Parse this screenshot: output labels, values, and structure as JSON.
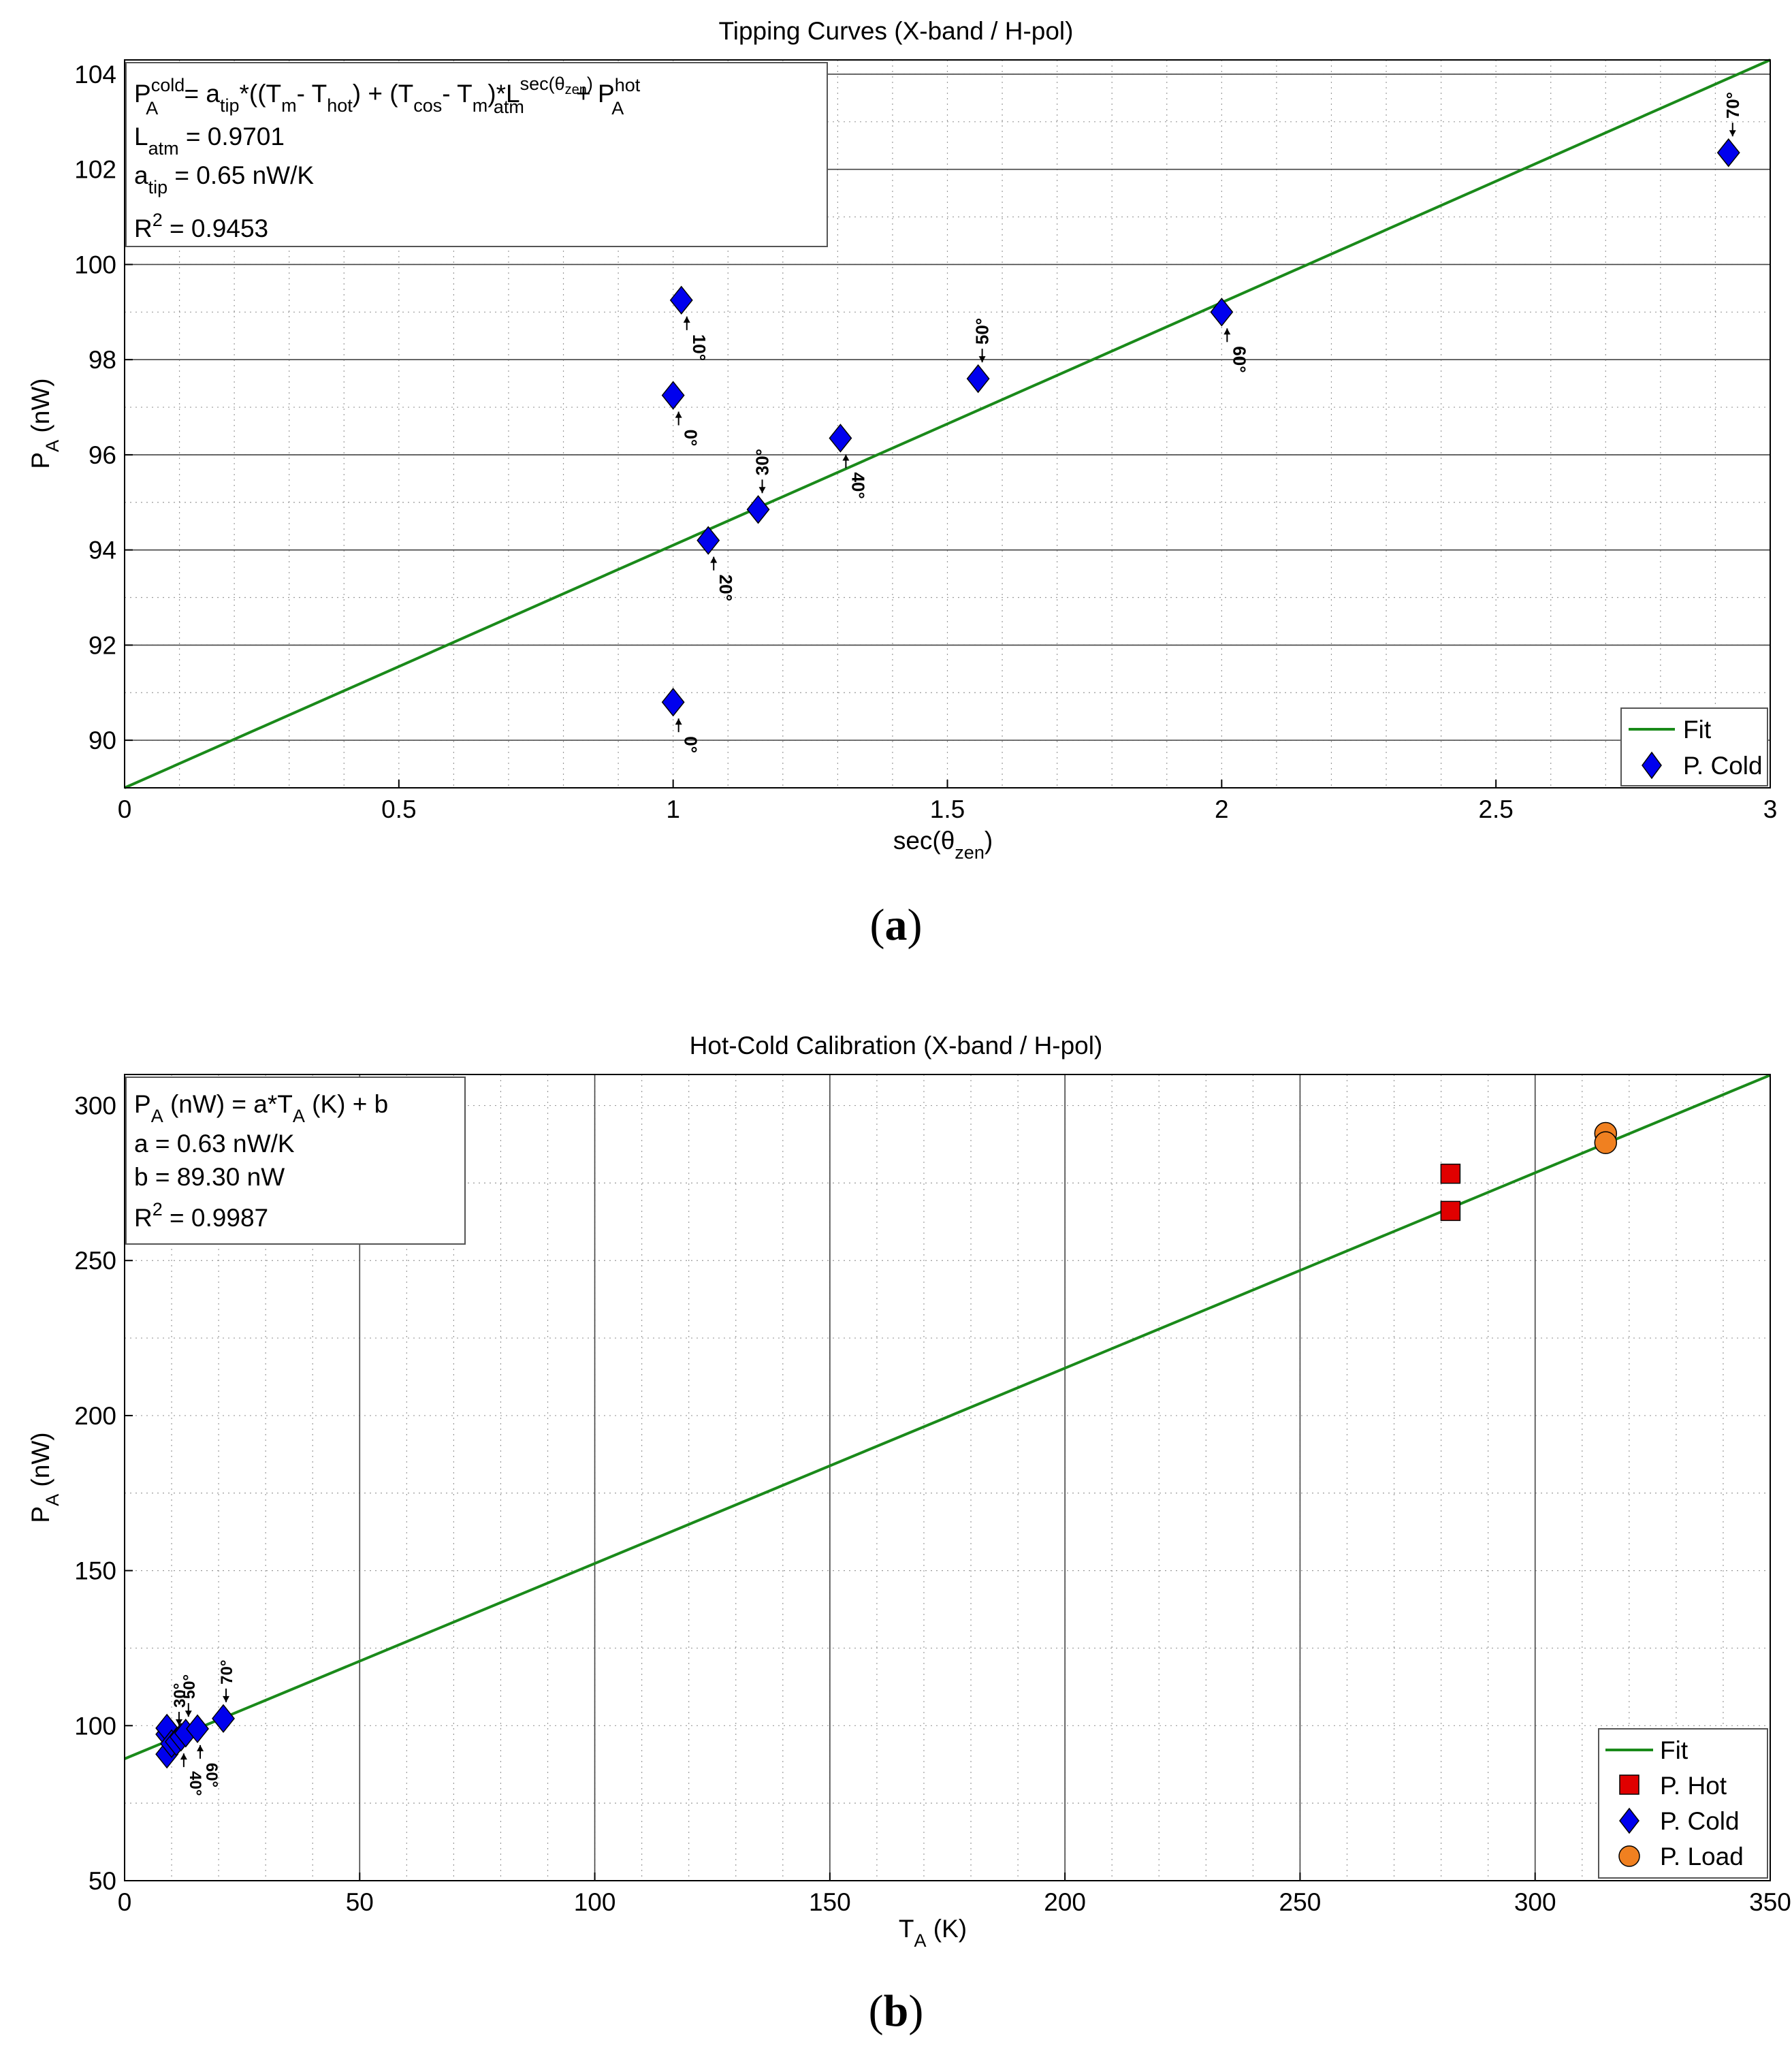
{
  "panels": {
    "a": {
      "caption_open": "(",
      "caption_letter": "a",
      "caption_close": ")"
    },
    "b": {
      "caption_open": "(",
      "caption_letter": "b",
      "caption_close": ")"
    }
  },
  "chart_data": [
    {
      "id": "a",
      "type": "scatter",
      "title": "Tipping Curves (X-band / H-pol)",
      "xlabel": "sec(θzen)",
      "xlabel_parts": {
        "main": "sec(θ",
        "sub": "zen",
        "close": ")"
      },
      "ylabel": "PA (nW)",
      "ylabel_parts": {
        "main": "P",
        "sub": "A",
        "unit": " (nW)"
      },
      "xlim": [
        0,
        3
      ],
      "ylim": [
        89,
        104.3
      ],
      "xticks": [
        0,
        0.5,
        1,
        1.5,
        2,
        2.5,
        3
      ],
      "xtick_labels": [
        "0",
        "0.5",
        "1",
        "1.5",
        "2",
        "2.5",
        "3"
      ],
      "yticks": [
        90,
        92,
        94,
        96,
        98,
        100,
        102,
        104
      ],
      "ytick_labels": [
        "90",
        "92",
        "94",
        "96",
        "98",
        "100",
        "102",
        "104"
      ],
      "xminor_step": 0.1,
      "yminor_step": 1,
      "grid": true,
      "legend_position": "bottom-right",
      "legend": [
        {
          "label": "Fit",
          "marker": "line",
          "color": "#1a8a1a"
        },
        {
          "label": "P. Cold",
          "marker": "diamond",
          "color": "#0000ee"
        }
      ],
      "fit": {
        "slope": 5.1,
        "intercept": 89.0
      },
      "series": [
        {
          "name": "P. Cold",
          "marker": "diamond",
          "color": "#0000ee",
          "points": [
            {
              "x": 1.0,
              "y": 90.8,
              "label": "0°",
              "label_side": "below"
            },
            {
              "x": 1.0,
              "y": 97.25,
              "label": "0°",
              "label_side": "below"
            },
            {
              "x": 1.015,
              "y": 99.25,
              "label": "10°",
              "label_side": "below"
            },
            {
              "x": 1.064,
              "y": 94.2,
              "label": "20°",
              "label_side": "below"
            },
            {
              "x": 1.155,
              "y": 94.85,
              "label": "30°",
              "label_side": "above"
            },
            {
              "x": 1.305,
              "y": 96.35,
              "label": "40°",
              "label_side": "below"
            },
            {
              "x": 1.556,
              "y": 97.6,
              "label": "50°",
              "label_side": "above"
            },
            {
              "x": 2.0,
              "y": 99.0,
              "label": "60°",
              "label_side": "below"
            },
            {
              "x": 2.924,
              "y": 102.35,
              "label": "70°",
              "label_side": "above"
            }
          ]
        }
      ],
      "annotation_box": {
        "eq1": {
          "p": "P",
          "p_sup": "cold",
          "p_sub": "A",
          "t1": " = a",
          "t1_sub": "tip",
          "t2": "*((T",
          "t2_sub": "m",
          "t3": "- T",
          "t3_sub": "hot",
          "t4": ") + (T",
          "t4_sub": "cos",
          "t5": "- T",
          "t5_sub": "m",
          "t6": ")*L",
          "t6_sup": "sec(θ",
          "t6_supsub": "zen",
          "t6_supclose": ")",
          "t6_sub": "atm",
          "t7": " + P",
          "t7_sup": "hot",
          "t7_sub": "A"
        },
        "eq2": {
          "main": "L",
          "sub": "atm",
          "rest": " = 0.9701"
        },
        "eq3": {
          "main": "a",
          "sub": "tip",
          "rest": " = 0.65 nW/K"
        },
        "eq4": {
          "main": "R",
          "sup": "2",
          "rest": " = 0.9453"
        }
      }
    },
    {
      "id": "b",
      "type": "scatter",
      "title": "Hot-Cold Calibration (X-band / H-pol)",
      "xlabel": "TA (K)",
      "xlabel_parts": {
        "main": "T",
        "sub": "A",
        "unit": " (K)"
      },
      "ylabel": "PA (nW)",
      "ylabel_parts": {
        "main": "P",
        "sub": "A",
        "unit": " (nW)"
      },
      "xlim": [
        0,
        350
      ],
      "ylim": [
        50,
        310
      ],
      "xticks": [
        0,
        50,
        100,
        150,
        200,
        250,
        300,
        350
      ],
      "xtick_labels": [
        "0",
        "50",
        "100",
        "150",
        "200",
        "250",
        "300",
        "350"
      ],
      "yticks": [
        50,
        100,
        150,
        200,
        250,
        300
      ],
      "ytick_labels": [
        "50",
        "100",
        "150",
        "200",
        "250",
        "300"
      ],
      "xminor_step": 10,
      "yminor_step": 25,
      "grid": true,
      "legend_position": "bottom-right",
      "legend": [
        {
          "label": "Fit",
          "marker": "line",
          "color": "#1a8a1a"
        },
        {
          "label": "P. Hot",
          "marker": "square",
          "color": "#e00000"
        },
        {
          "label": "P. Cold",
          "marker": "diamond",
          "color": "#0000ee"
        },
        {
          "label": "P. Load",
          "marker": "circle",
          "color": "#f08020"
        }
      ],
      "fit": {
        "slope": 0.63,
        "intercept": 89.3
      },
      "series": [
        {
          "name": "P. Hot",
          "marker": "square",
          "color": "#e00000",
          "points": [
            {
              "x": 282,
              "y": 278
            },
            {
              "x": 282,
              "y": 266
            }
          ]
        },
        {
          "name": "P. Cold",
          "marker": "diamond",
          "color": "#0000ee",
          "points": [
            {
              "x": 9,
              "y": 90.8,
              "label": "",
              "label_side": "none"
            },
            {
              "x": 9,
              "y": 97.2,
              "label": "",
              "label_side": "none"
            },
            {
              "x": 9,
              "y": 99.2,
              "label": "",
              "label_side": "none"
            },
            {
              "x": 10,
              "y": 94.2,
              "label": "",
              "label_side": "none"
            },
            {
              "x": 11,
              "y": 94.8,
              "label": "30°",
              "label_side": "above"
            },
            {
              "x": 12,
              "y": 96.3,
              "label": "40°",
              "label_side": "below"
            },
            {
              "x": 13,
              "y": 97.6,
              "label": "50°",
              "label_side": "above"
            },
            {
              "x": 15.5,
              "y": 99.0,
              "label": "60°",
              "label_side": "below"
            },
            {
              "x": 21,
              "y": 102.3,
              "label": "70°",
              "label_side": "above"
            }
          ]
        },
        {
          "name": "P. Load",
          "marker": "circle",
          "color": "#f08020",
          "points": [
            {
              "x": 315,
              "y": 291
            },
            {
              "x": 315,
              "y": 288
            }
          ]
        }
      ],
      "annotation_box": {
        "eq1": {
          "p": "P",
          "p_sub": "A",
          "t1": " (nW) = a*T",
          "t1_sub": "A",
          "t2": " (K) + b"
        },
        "eq2": {
          "text": "a = 0.63 nW/K"
        },
        "eq3": {
          "text": "b = 89.30 nW"
        },
        "eq4": {
          "main": "R",
          "sup": "2",
          "rest": " = 0.9987"
        }
      }
    }
  ]
}
